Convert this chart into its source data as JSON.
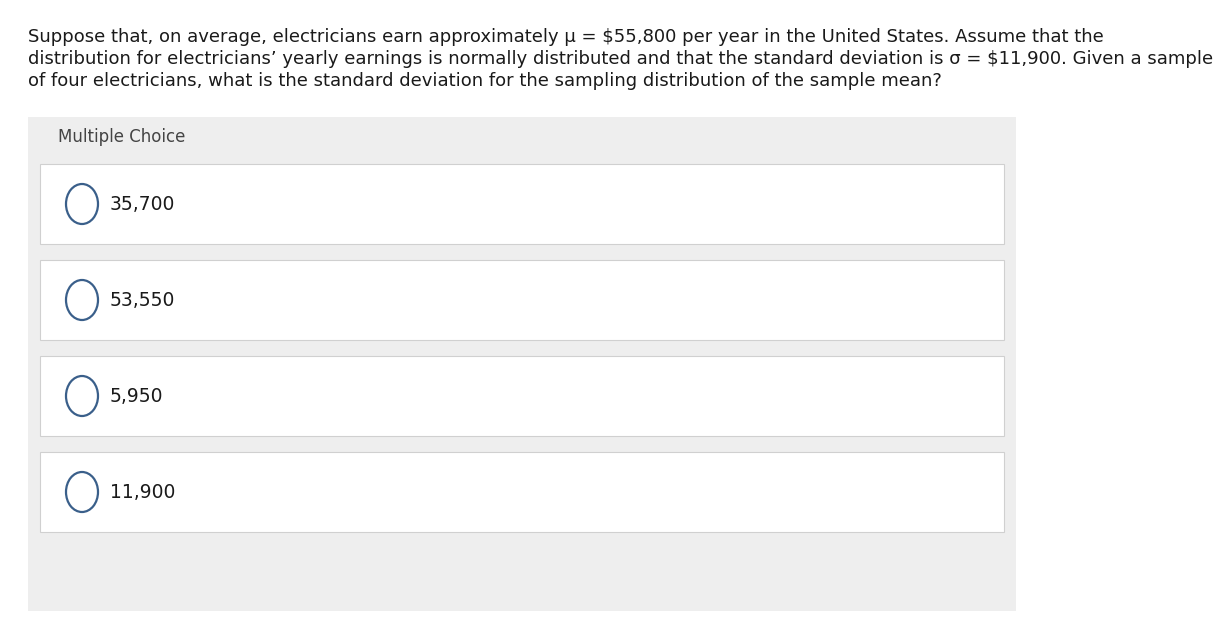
{
  "question_line1": "Suppose that, on average, electricians earn approximately μ = $55,800 per year in the United States. Assume that the",
  "question_line2": "distribution for electricians’ yearly earnings is normally distributed and that the standard deviation is σ = $11,900. Given a sample",
  "question_line3": "of four electricians, what is the standard deviation for the sampling distribution of the sample mean?",
  "section_label": "Multiple Choice",
  "choices": [
    "35,700",
    "53,550",
    "5,950",
    "11,900"
  ],
  "bg_color": "#ffffff",
  "section_bg": "#eeeeee",
  "choice_bg": "#ffffff",
  "gap_bg": "#eeeeee",
  "text_color": "#1a1a1a",
  "label_color": "#444444",
  "choice_color": "#1a1a1a",
  "circle_edge": "#3a5f8a",
  "q_fontsize": 13.0,
  "choice_fontsize": 13.5,
  "label_fontsize": 12.0
}
